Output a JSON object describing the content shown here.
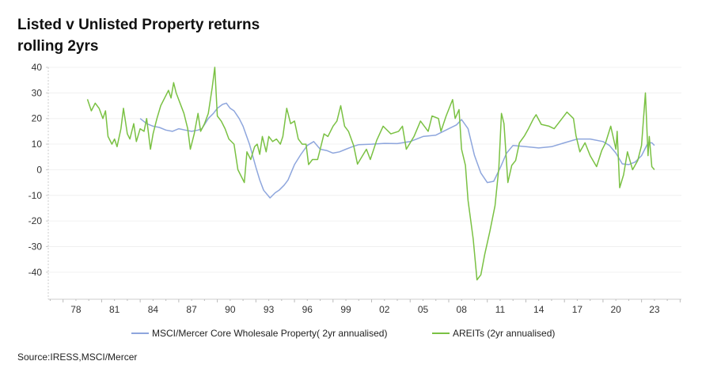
{
  "chart_data": {
    "type": "line",
    "title": "Listed v Unlisted Property returns",
    "subtitle": "rolling 2yrs",
    "xlabel": "",
    "ylabel": "",
    "xlim": [
      1975.85,
      2025.1
    ],
    "ylim": [
      -45,
      40
    ],
    "x_ticks": [
      1978,
      1981,
      1984,
      1987,
      1990,
      1993,
      1996,
      1999,
      2002,
      2005,
      2008,
      2011,
      2014,
      2017,
      2020,
      2023
    ],
    "x_tick_labels": [
      "78",
      "81",
      "84",
      "87",
      "90",
      "93",
      "96",
      "99",
      "02",
      "05",
      "08",
      "11",
      "14",
      "17",
      "20",
      "23"
    ],
    "y_ticks": [
      40,
      30,
      20,
      10,
      0,
      -10,
      -20,
      -30,
      -40
    ],
    "y_tick_labels": [
      "40",
      "30",
      "20",
      "10",
      "0",
      "-10",
      "-20",
      "-30",
      "-40"
    ],
    "grid": true,
    "legend_position": "bottom",
    "series": [
      {
        "name": "MSCI/Mercer Core Wholesale Property( 2yr annualised)",
        "color": "#8ea6dd",
        "points": [
          [
            1983.0,
            20
          ],
          [
            1983.5,
            18
          ],
          [
            1984.0,
            17
          ],
          [
            1984.5,
            16.5
          ],
          [
            1985.0,
            15.5
          ],
          [
            1985.5,
            15
          ],
          [
            1986.0,
            16
          ],
          [
            1986.5,
            15.5
          ],
          [
            1987.0,
            15
          ],
          [
            1987.5,
            15.5
          ],
          [
            1987.8,
            16
          ],
          [
            1988.3,
            20
          ],
          [
            1988.7,
            22
          ],
          [
            1989.0,
            24
          ],
          [
            1989.4,
            25.5
          ],
          [
            1989.7,
            26
          ],
          [
            1990.0,
            24
          ],
          [
            1990.3,
            23
          ],
          [
            1990.7,
            20
          ],
          [
            1991.0,
            17
          ],
          [
            1991.5,
            10
          ],
          [
            1992.0,
            1
          ],
          [
            1992.3,
            -4
          ],
          [
            1992.6,
            -8
          ],
          [
            1993.1,
            -11
          ],
          [
            1993.5,
            -9
          ],
          [
            1993.8,
            -8
          ],
          [
            1994.2,
            -6
          ],
          [
            1994.5,
            -4
          ],
          [
            1995.0,
            2
          ],
          [
            1995.5,
            6
          ],
          [
            1996.0,
            9.5
          ],
          [
            1996.5,
            11
          ],
          [
            1997.0,
            8
          ],
          [
            1997.5,
            7.5
          ],
          [
            1998.0,
            6.5
          ],
          [
            1998.5,
            7
          ],
          [
            1999.0,
            8
          ],
          [
            1999.5,
            9
          ],
          [
            2000.0,
            9.8
          ],
          [
            2001.0,
            10
          ],
          [
            2002.0,
            10.3
          ],
          [
            2003.0,
            10.2
          ],
          [
            2004.0,
            11
          ],
          [
            2005.0,
            13
          ],
          [
            2006.0,
            13.5
          ],
          [
            2007.0,
            16
          ],
          [
            2007.6,
            17.5
          ],
          [
            2008.0,
            19.6
          ],
          [
            2008.5,
            16
          ],
          [
            2009.0,
            5.6
          ],
          [
            2009.5,
            -1.3
          ],
          [
            2010.0,
            -5
          ],
          [
            2010.5,
            -4.5
          ],
          [
            2011.0,
            0.7
          ],
          [
            2011.5,
            6.5
          ],
          [
            2012.0,
            9.5
          ],
          [
            2013.0,
            9
          ],
          [
            2014.0,
            8.5
          ],
          [
            2015.0,
            9
          ],
          [
            2016.0,
            10.5
          ],
          [
            2017.0,
            12
          ],
          [
            2018.0,
            12
          ],
          [
            2019.0,
            11
          ],
          [
            2019.5,
            9.5
          ],
          [
            2020.0,
            6.5
          ],
          [
            2020.5,
            2.3
          ],
          [
            2021.0,
            2
          ],
          [
            2021.5,
            3
          ],
          [
            2022.0,
            5.5
          ],
          [
            2022.5,
            10.5
          ],
          [
            2022.8,
            10.5
          ],
          [
            2023.0,
            9.5
          ]
        ]
      },
      {
        "name": "AREITs (2yr annualised)",
        "color": "#7ac143",
        "points": [
          [
            1978.9,
            27.5
          ],
          [
            1979.2,
            23
          ],
          [
            1979.5,
            26
          ],
          [
            1979.8,
            24
          ],
          [
            1980.1,
            20
          ],
          [
            1980.3,
            23
          ],
          [
            1980.5,
            13
          ],
          [
            1980.8,
            10
          ],
          [
            1981.0,
            12
          ],
          [
            1981.2,
            9
          ],
          [
            1981.5,
            16
          ],
          [
            1981.7,
            24
          ],
          [
            1982.0,
            14
          ],
          [
            1982.2,
            12
          ],
          [
            1982.5,
            18
          ],
          [
            1982.7,
            11
          ],
          [
            1983.0,
            16
          ],
          [
            1983.3,
            15
          ],
          [
            1983.5,
            20
          ],
          [
            1983.8,
            8
          ],
          [
            1984.0,
            14
          ],
          [
            1984.3,
            20
          ],
          [
            1984.6,
            25
          ],
          [
            1984.9,
            28
          ],
          [
            1985.2,
            31
          ],
          [
            1985.4,
            28
          ],
          [
            1985.6,
            34
          ],
          [
            1985.8,
            30
          ],
          [
            1986.1,
            26
          ],
          [
            1986.4,
            22
          ],
          [
            1986.7,
            16
          ],
          [
            1986.9,
            8
          ],
          [
            1987.2,
            14
          ],
          [
            1987.5,
            22
          ],
          [
            1987.7,
            15
          ],
          [
            1988.0,
            18
          ],
          [
            1988.3,
            22
          ],
          [
            1988.6,
            32
          ],
          [
            1988.8,
            40
          ],
          [
            1989.0,
            21
          ],
          [
            1989.3,
            19
          ],
          [
            1989.6,
            16
          ],
          [
            1989.9,
            12
          ],
          [
            1990.3,
            10
          ],
          [
            1990.6,
            0
          ],
          [
            1990.9,
            -3
          ],
          [
            1991.1,
            -5
          ],
          [
            1991.3,
            7
          ],
          [
            1991.6,
            4
          ],
          [
            1991.9,
            9
          ],
          [
            1992.1,
            10
          ],
          [
            1992.3,
            6
          ],
          [
            1992.5,
            13
          ],
          [
            1992.8,
            7
          ],
          [
            1993.0,
            13
          ],
          [
            1993.3,
            11
          ],
          [
            1993.6,
            12
          ],
          [
            1993.9,
            10
          ],
          [
            1994.1,
            13
          ],
          [
            1994.4,
            24
          ],
          [
            1994.7,
            18
          ],
          [
            1995.0,
            19
          ],
          [
            1995.3,
            12
          ],
          [
            1995.6,
            10
          ],
          [
            1995.9,
            10
          ],
          [
            1996.1,
            2
          ],
          [
            1996.4,
            4
          ],
          [
            1996.8,
            4
          ],
          [
            1997.0,
            8
          ],
          [
            1997.3,
            14
          ],
          [
            1997.6,
            13
          ],
          [
            1998.0,
            17
          ],
          [
            1998.3,
            19
          ],
          [
            1998.6,
            25
          ],
          [
            1998.9,
            17
          ],
          [
            1999.2,
            15
          ],
          [
            1999.6,
            9.5
          ],
          [
            1999.9,
            2.2
          ],
          [
            2000.6,
            8
          ],
          [
            2000.9,
            4
          ],
          [
            2001.4,
            11.5
          ],
          [
            2001.9,
            17
          ],
          [
            2002.5,
            14
          ],
          [
            2003.1,
            15
          ],
          [
            2003.4,
            17
          ],
          [
            2003.7,
            8
          ],
          [
            2004.3,
            13
          ],
          [
            2004.8,
            19
          ],
          [
            2005.4,
            15
          ],
          [
            2005.7,
            21
          ],
          [
            2006.2,
            20
          ],
          [
            2006.4,
            15
          ],
          [
            2006.8,
            21
          ],
          [
            2007.3,
            27.4
          ],
          [
            2007.5,
            20
          ],
          [
            2007.8,
            23.5
          ],
          [
            2008.0,
            8
          ],
          [
            2008.3,
            1.7
          ],
          [
            2008.5,
            -12
          ],
          [
            2008.9,
            -27
          ],
          [
            2009.2,
            -43
          ],
          [
            2009.5,
            -41
          ],
          [
            2009.8,
            -33
          ],
          [
            2010.2,
            -24
          ],
          [
            2010.6,
            -14
          ],
          [
            2010.9,
            0.7
          ],
          [
            2011.1,
            22
          ],
          [
            2011.3,
            18
          ],
          [
            2011.6,
            -5
          ],
          [
            2011.9,
            1.7
          ],
          [
            2012.2,
            3.6
          ],
          [
            2012.5,
            10.5
          ],
          [
            2012.9,
            13.3
          ],
          [
            2013.2,
            16
          ],
          [
            2013.6,
            20
          ],
          [
            2013.8,
            21.5
          ],
          [
            2014.2,
            17.7
          ],
          [
            2014.8,
            17
          ],
          [
            2015.2,
            16
          ],
          [
            2015.6,
            18.6
          ],
          [
            2016.2,
            22.5
          ],
          [
            2016.7,
            20
          ],
          [
            2016.9,
            13.3
          ],
          [
            2017.2,
            7
          ],
          [
            2017.6,
            10.5
          ],
          [
            2018.0,
            5.5
          ],
          [
            2018.5,
            1.2
          ],
          [
            2018.9,
            7.5
          ],
          [
            2019.2,
            10.5
          ],
          [
            2019.6,
            17
          ],
          [
            2020.0,
            8
          ],
          [
            2020.1,
            15
          ],
          [
            2020.3,
            -7
          ],
          [
            2020.6,
            -2
          ],
          [
            2020.9,
            7
          ],
          [
            2021.3,
            0
          ],
          [
            2021.7,
            3.6
          ],
          [
            2022.0,
            9.5
          ],
          [
            2022.3,
            30
          ],
          [
            2022.5,
            5.5
          ],
          [
            2022.6,
            13
          ],
          [
            2022.8,
            1.2
          ],
          [
            2023.0,
            0
          ]
        ]
      }
    ],
    "source": "Source:IRESS,MSCI/Mercer"
  }
}
